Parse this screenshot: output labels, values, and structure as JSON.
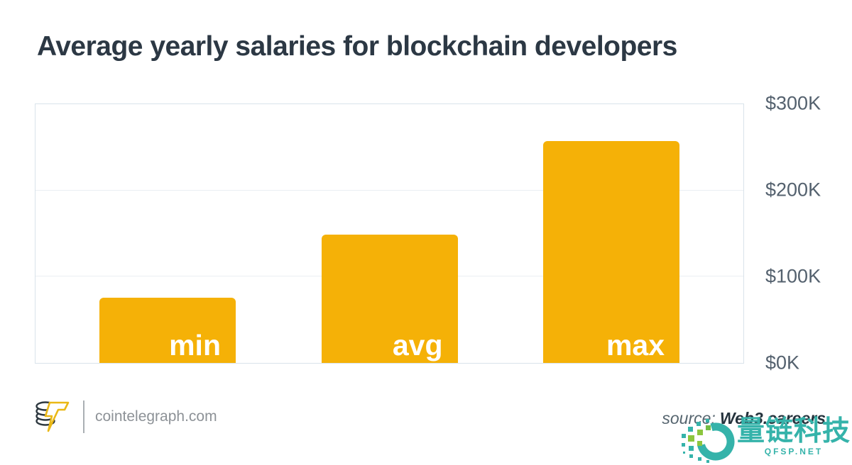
{
  "title": "Average yearly salaries for blockchain developers",
  "chart_data": {
    "type": "bar",
    "title": "Average yearly salaries for blockchain developers",
    "categories": [
      "min",
      "avg",
      "max"
    ],
    "values": [
      76,
      149,
      257
    ],
    "value_unit": "$K",
    "xlabel": "",
    "ylabel": "",
    "ylim": [
      0,
      300
    ],
    "y_ticks": [
      {
        "label": "$0K",
        "value": 0
      },
      {
        "label": "$100K",
        "value": 100
      },
      {
        "label": "$200K",
        "value": 200
      },
      {
        "label": "$300K",
        "value": 300
      }
    ],
    "grid": true,
    "tick_label_position": "right",
    "bar_color": "#F5B107",
    "bar_label_color": "#ffffff"
  },
  "footer": {
    "brand": {
      "logo": "cointelegraph-coin-lightning-logo",
      "site": "cointelegraph.com"
    },
    "source": {
      "prefix": "source:",
      "name": "Web3.careers"
    },
    "watermark": {
      "logo": "dotted-circle-logo",
      "text": "量链科技",
      "subtext": "QFSP.NET",
      "color": "#35B3AA",
      "accent_green": "#8CC63E"
    }
  }
}
